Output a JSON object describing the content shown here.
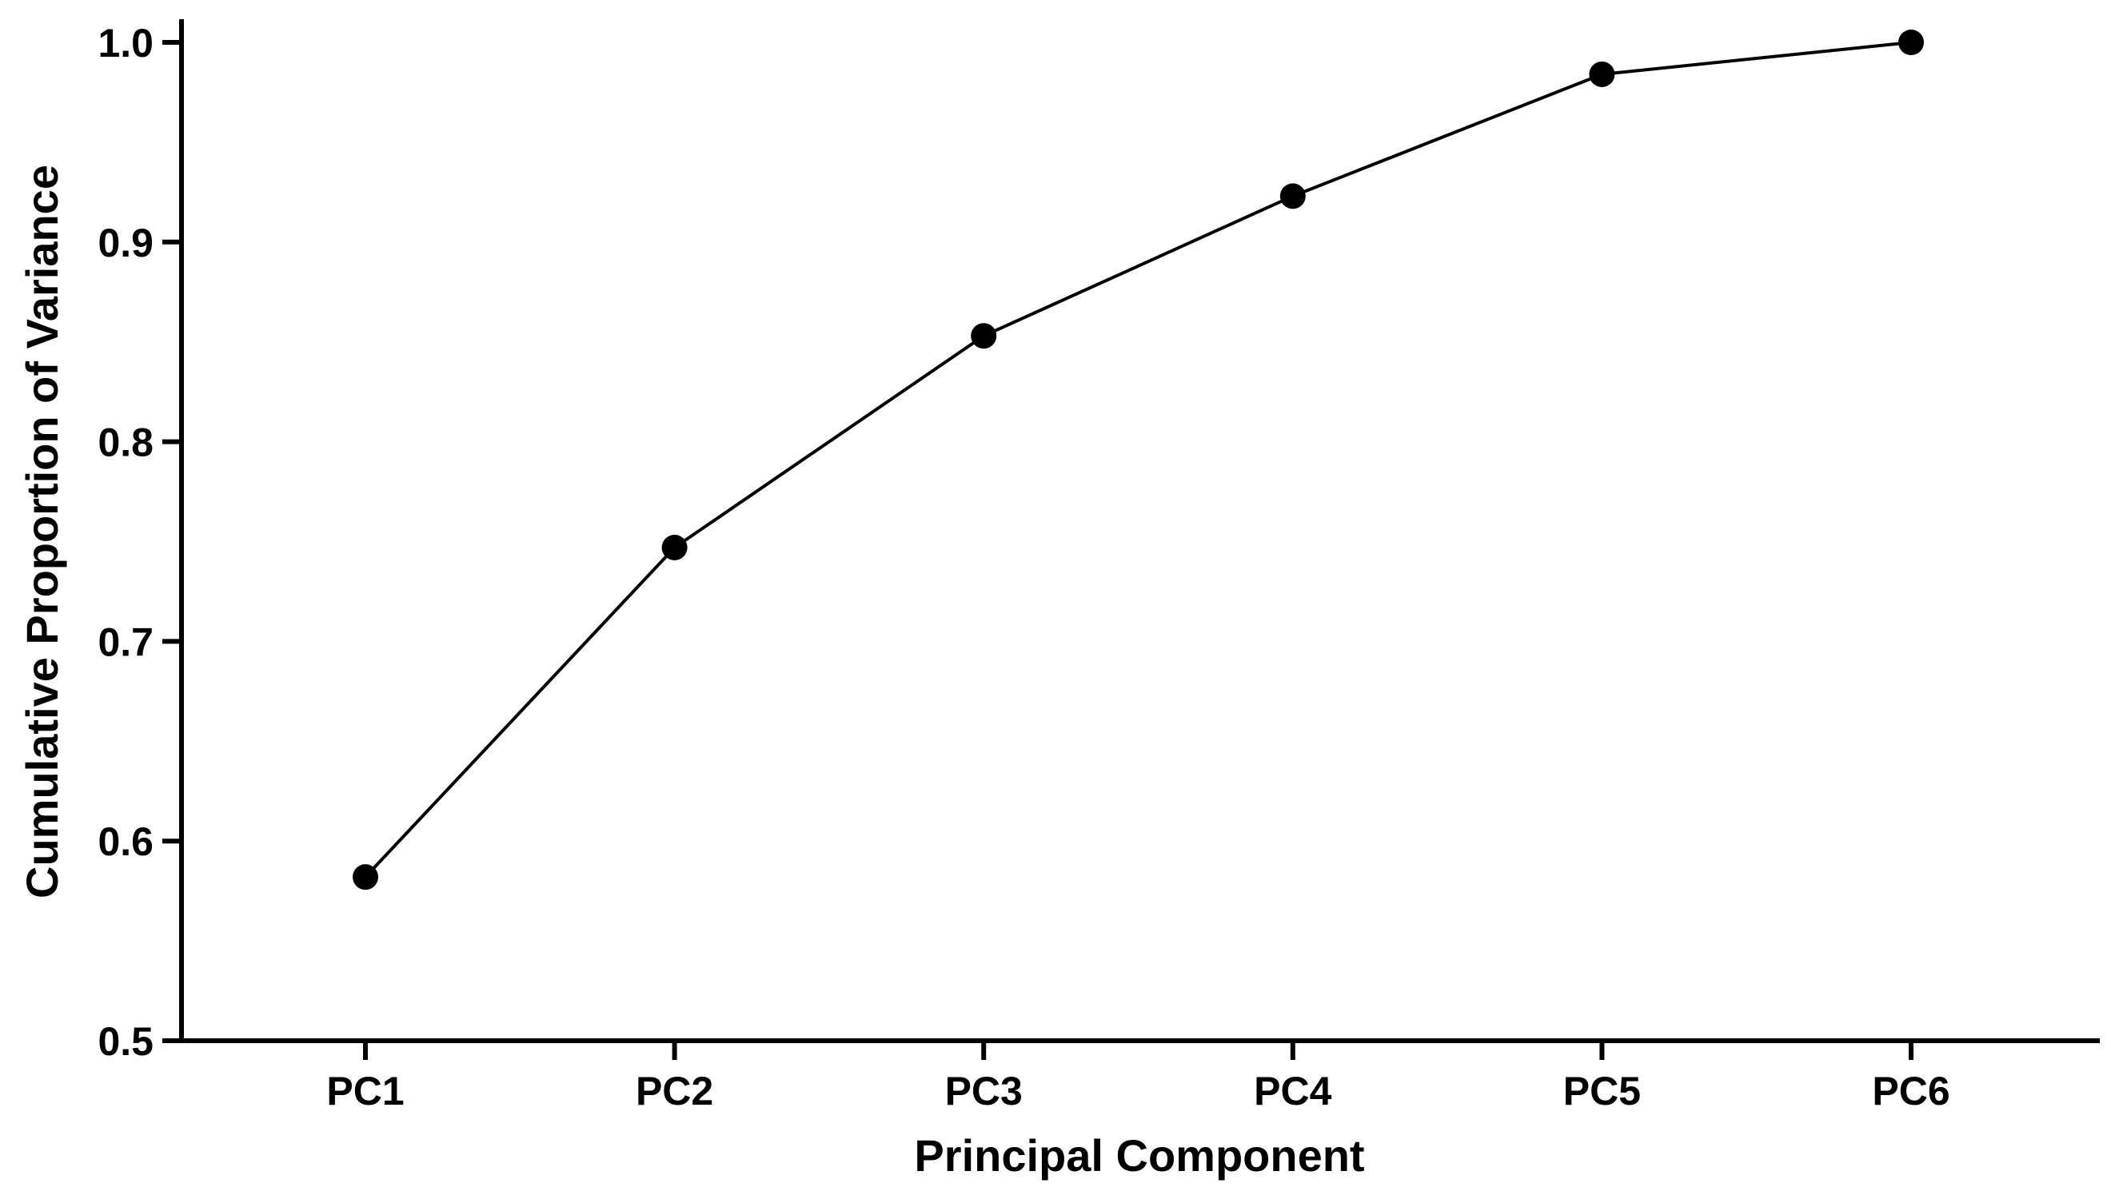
{
  "chart_data": {
    "type": "line",
    "categories": [
      "PC1",
      "PC2",
      "PC3",
      "PC4",
      "PC5",
      "PC6"
    ],
    "values": [
      0.582,
      0.747,
      0.853,
      0.923,
      0.984,
      1.0
    ],
    "xlabel": "Principal Component",
    "ylabel": "Cumulative Proportion of Variance",
    "ylim": [
      0.5,
      1.0
    ],
    "yticks": [
      "0.5",
      "0.6",
      "0.7",
      "0.8",
      "0.9",
      "1.0"
    ],
    "grid": false,
    "legend": "none",
    "line_color": "#000000",
    "marker_color": "#000000"
  }
}
